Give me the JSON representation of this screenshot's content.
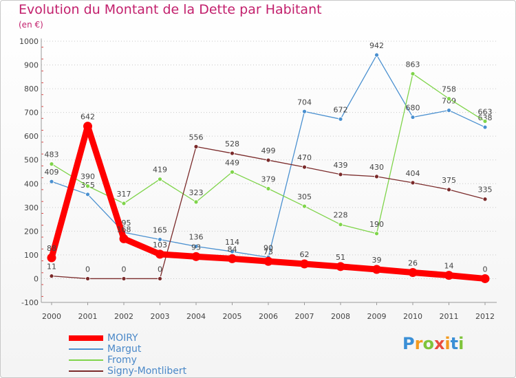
{
  "chart_data": {
    "type": "line",
    "title": "Evolution du Montant de la Dette par Habitant",
    "subtitle": "(en €)",
    "xlabel": "",
    "ylabel": "",
    "ylim": [
      -100,
      1000
    ],
    "yticks": [
      -100,
      0,
      100,
      200,
      300,
      400,
      500,
      600,
      700,
      800,
      900,
      1000
    ],
    "categories": [
      "2000",
      "2001",
      "2002",
      "2003",
      "2004",
      "2005",
      "2006",
      "2007",
      "2008",
      "2009",
      "2010",
      "2011",
      "2012"
    ],
    "grid": "horizontal dotted",
    "legend_position": "bottom-left",
    "series": [
      {
        "name": "MOIRY",
        "color": "#ff0000",
        "emphasis": true,
        "values": [
          88,
          642,
          168,
          103,
          93,
          84,
          73,
          62,
          51,
          39,
          26,
          14,
          0
        ]
      },
      {
        "name": "Margut",
        "color": "#4a90d0",
        "emphasis": false,
        "values": [
          409,
          355,
          195,
          165,
          136,
          114,
          90,
          704,
          672,
          942,
          680,
          709,
          638
        ]
      },
      {
        "name": "Fromy",
        "color": "#7fd44a",
        "emphasis": false,
        "values": [
          483,
          390,
          317,
          419,
          323,
          449,
          379,
          305,
          228,
          190,
          863,
          758,
          663
        ]
      },
      {
        "name": "Signy-Montlibert",
        "color": "#7a2a2a",
        "emphasis": false,
        "values": [
          11,
          0,
          0,
          0,
          556,
          528,
          499,
          470,
          439,
          430,
          404,
          375,
          335
        ]
      }
    ]
  },
  "brand": {
    "letters": [
      "P",
      "r",
      "o",
      "x",
      "i",
      "t",
      "i"
    ],
    "colors": [
      "#3a8fd6",
      "#f39a1e",
      "#7ec43b",
      "#e84c3d",
      "#f39a1e",
      "#3a8fd6",
      "#7ec43b"
    ]
  }
}
